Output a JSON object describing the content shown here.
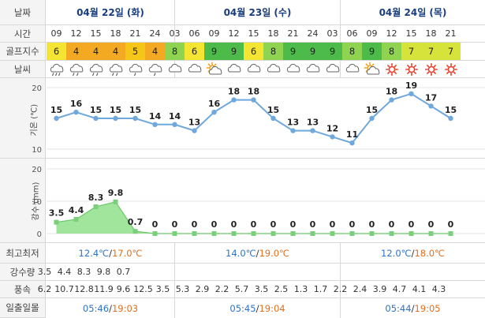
{
  "row_labels": {
    "date": "날짜",
    "time": "시간",
    "golf_index": "골프지수",
    "weather": "날씨",
    "minmax": "최고최저",
    "precip": "강수량",
    "wind": "풍속",
    "sunrise_sunset": "일출일몰"
  },
  "dates": [
    "04월 22일 (화)",
    "04월 23일 (수)",
    "04월 24일 (목)"
  ],
  "times": [
    "09",
    "12",
    "15",
    "18",
    "21",
    "24",
    "03",
    "06",
    "09",
    "12",
    "15",
    "18",
    "21",
    "24",
    "03",
    "06",
    "09",
    "12",
    "15",
    "18",
    "21"
  ],
  "golf_index": [
    6,
    4,
    4,
    4,
    5,
    4,
    8,
    6,
    9,
    9,
    6,
    8,
    9,
    9,
    9,
    8,
    9,
    8,
    7,
    7,
    7
  ],
  "weather": [
    "rain-heavy",
    "rain",
    "rain",
    "rain",
    "rain-light",
    "rain-light",
    "cloudy",
    "cloudy",
    "partly-sunny",
    "cloudy",
    "cloudy",
    "cloudy",
    "cloudy",
    "cloudy",
    "cloudy",
    "cloudy",
    "partly-sunny",
    "sunny",
    "sunny",
    "sunny",
    "sunny"
  ],
  "temperature_axis": {
    "label": "기온 (℃)",
    "ticks": [
      "20",
      "10"
    ]
  },
  "precip_axis": {
    "label": "강수 (mm)",
    "ticks": [
      "20",
      "10",
      "0"
    ]
  },
  "chart_data": [
    {
      "type": "line",
      "title": "",
      "ylabel": "기온 (℃)",
      "ylim": [
        10,
        20
      ],
      "x": [
        "09",
        "12",
        "15",
        "18",
        "21",
        "24",
        "03",
        "06",
        "09",
        "12",
        "15",
        "18",
        "21",
        "24",
        "03",
        "06",
        "09",
        "12",
        "15",
        "18",
        "21"
      ],
      "values": [
        15,
        16,
        15,
        15,
        15,
        14,
        14,
        13,
        16,
        18,
        18,
        15,
        13,
        13,
        12,
        11,
        15,
        18,
        19,
        17,
        15
      ],
      "labels": [
        "15",
        "16",
        "15",
        "15",
        "15",
        "14",
        "14",
        "13",
        "16",
        "18",
        "18",
        "15",
        "13",
        "13",
        "12",
        "11",
        "15",
        "18",
        "19",
        "17",
        "15"
      ]
    },
    {
      "type": "area",
      "title": "",
      "ylabel": "강수 (mm)",
      "ylim": [
        0,
        20
      ],
      "x": [
        "09",
        "12",
        "15",
        "18",
        "21",
        "24",
        "03",
        "06",
        "09",
        "12",
        "15",
        "18",
        "21",
        "24",
        "03",
        "06",
        "09",
        "12",
        "15",
        "18",
        "21"
      ],
      "values": [
        3.5,
        4.4,
        8.3,
        9.8,
        0.7,
        0,
        0,
        0,
        0,
        0,
        0,
        0,
        0,
        0,
        0,
        0,
        0,
        0,
        0,
        0,
        0
      ],
      "labels": [
        "3.5",
        "4.4",
        "8.3",
        "9.8",
        "0.7",
        "0",
        "0",
        "0",
        "0",
        "0",
        "0",
        "0",
        "0",
        "0",
        "0",
        "0",
        "0",
        "0",
        "0",
        "0",
        "0"
      ]
    }
  ],
  "minmax": [
    {
      "min": "12.4℃",
      "sep": "/",
      "max": "17.0℃"
    },
    {
      "min": "14.0℃",
      "sep": "/",
      "max": "19.0℃"
    },
    {
      "min": "12.0℃",
      "sep": "/",
      "max": "18.0℃"
    }
  ],
  "precip": [
    "3.5",
    "4.4",
    "8.3",
    "9.8",
    "0.7"
  ],
  "wind": [
    "6.2",
    "10.7",
    "12.8",
    "11.9",
    "9.6",
    "12.5",
    "3.5",
    "5.3",
    "2.9",
    "2.2",
    "5.7",
    "3.5",
    "2.5",
    "1.3",
    "1.7",
    "2.2",
    "2.4",
    "3.9",
    "4.7",
    "4.1",
    "4.3"
  ],
  "sun": [
    {
      "rise": "05:46",
      "sep": "/",
      "set": "19:03"
    },
    {
      "rise": "05:45",
      "sep": "/",
      "set": "19:04"
    },
    {
      "rise": "05:44",
      "sep": "/",
      "set": "19:05"
    }
  ],
  "colors": {
    "golf_9": "#4cbb4a",
    "golf_8": "#8ed451",
    "golf_7": "#d6e33a",
    "golf_6": "#f3e532",
    "golf_5": "#f5c518",
    "golf_4": "#f4a922",
    "temp_line": "#6fa8dc",
    "precip_fill": "#8fe08a",
    "precip_marker": "#7ad07a"
  }
}
